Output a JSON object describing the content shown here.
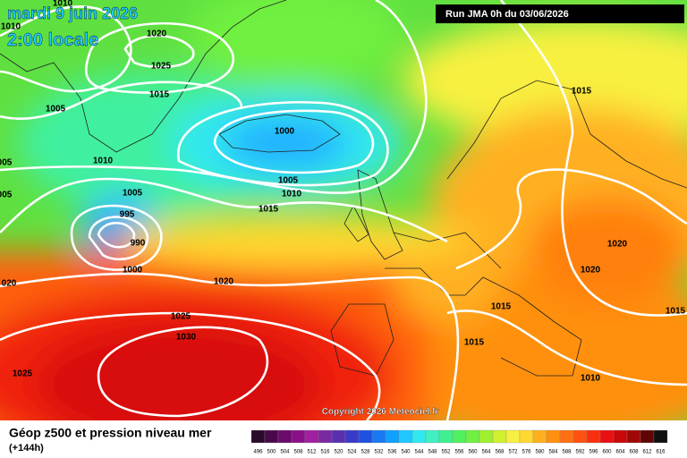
{
  "header": {
    "date": "mardi 9 juin 2026",
    "time": "2:00 locale",
    "run": "Run JMA 0h du 03/06/2026"
  },
  "map": {
    "copyright": "Copyright 2026 Meteociel.fr",
    "isobar_labels": [
      "1010",
      "1010",
      "1020",
      "1025",
      "1015",
      "1005",
      "1010",
      "005",
      "005",
      "1000",
      "1005",
      "1010",
      "1015",
      "1005",
      "995",
      "990",
      "1000",
      "1020",
      "1025",
      "1030",
      "1025",
      "020",
      "1015",
      "1020",
      "1020",
      "1015",
      "1015",
      "1015",
      "1010"
    ]
  },
  "footer": {
    "title": "Géop z500 et pression niveau mer",
    "lead": "(+144h)",
    "scale": [
      496,
      500,
      504,
      508,
      512,
      516,
      520,
      524,
      528,
      532,
      536,
      540,
      544,
      548,
      552,
      556,
      560,
      564,
      568,
      572,
      576,
      580,
      584,
      588,
      592,
      596,
      600,
      604,
      608,
      612,
      616
    ],
    "scale_colors": [
      "#2a0a2a",
      "#4a0a4a",
      "#6a0a6a",
      "#8a108a",
      "#a020a0",
      "#7a2aa0",
      "#5a30b0",
      "#3a3ac8",
      "#2050e0",
      "#1a78f0",
      "#10a0ff",
      "#20c8ff",
      "#30e8f0",
      "#40f0c0",
      "#40f090",
      "#50f060",
      "#70f040",
      "#a0f030",
      "#d0f030",
      "#f8f040",
      "#ffd830",
      "#ffb020",
      "#ff9010",
      "#ff7010",
      "#ff5010",
      "#f83010",
      "#e81010",
      "#c80808",
      "#a00808",
      "#600404",
      "#101010"
    ]
  }
}
